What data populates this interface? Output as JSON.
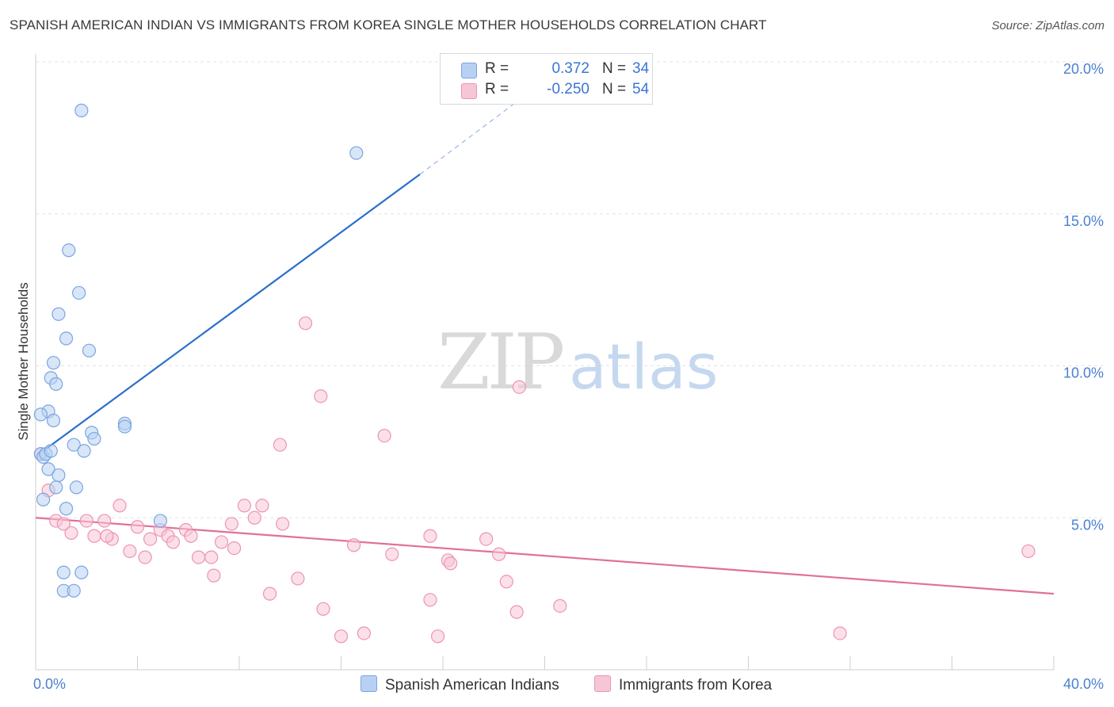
{
  "title": "SPANISH AMERICAN INDIAN VS IMMIGRANTS FROM KOREA SINGLE MOTHER HOUSEHOLDS CORRELATION CHART",
  "source": "Source: ZipAtlas.com",
  "watermark": {
    "zip": "ZIP",
    "atlas": "atlas"
  },
  "colors": {
    "blue_fill": "#b8d1f3",
    "blue_stroke": "#7aa5e0",
    "blue_line": "#2a6fcc",
    "pink_fill": "#f7c6d6",
    "pink_stroke": "#ec94b2",
    "pink_line": "#e0709a",
    "tick_text": "#4a7fd1",
    "grid": "#e3e3e3"
  },
  "legend": {
    "rows": [
      {
        "series": "blue",
        "r_label": "R =",
        "r_value": "0.372",
        "n_label": "N =",
        "n_value": "34"
      },
      {
        "series": "pink",
        "r_label": "R =",
        "r_value": "-0.250",
        "n_label": "N =",
        "n_value": "54"
      }
    ]
  },
  "chart_data": {
    "type": "scatter",
    "title": "SPANISH AMERICAN INDIAN VS IMMIGRANTS FROM KOREA SINGLE MOTHER HOUSEHOLDS CORRELATION CHART",
    "xlabel": "",
    "ylabel": "Single Mother Households",
    "xlim": [
      0,
      40
    ],
    "ylim": [
      0,
      20
    ],
    "x_tick_labels": [
      "0.0%",
      "40.0%"
    ],
    "y_ticks": [
      5,
      10,
      15,
      20
    ],
    "y_tick_labels": [
      "5.0%",
      "10.0%",
      "15.0%",
      "20.0%"
    ],
    "grid": true,
    "series": [
      {
        "name": "Spanish American Indians",
        "color": "blue",
        "points": [
          [
            1.8,
            18.4
          ],
          [
            12.6,
            17.0
          ],
          [
            1.3,
            13.8
          ],
          [
            1.7,
            12.4
          ],
          [
            0.9,
            11.7
          ],
          [
            1.2,
            10.9
          ],
          [
            2.1,
            10.5
          ],
          [
            0.7,
            10.1
          ],
          [
            0.6,
            9.6
          ],
          [
            0.8,
            9.4
          ],
          [
            0.5,
            8.5
          ],
          [
            0.2,
            8.4
          ],
          [
            0.7,
            8.2
          ],
          [
            3.5,
            8.1
          ],
          [
            3.5,
            8.0
          ],
          [
            2.2,
            7.8
          ],
          [
            2.3,
            7.6
          ],
          [
            1.5,
            7.4
          ],
          [
            1.9,
            7.2
          ],
          [
            0.2,
            7.1
          ],
          [
            0.3,
            7.0
          ],
          [
            0.5,
            6.6
          ],
          [
            0.9,
            6.4
          ],
          [
            1.6,
            6.0
          ],
          [
            0.8,
            6.0
          ],
          [
            0.3,
            5.6
          ],
          [
            1.2,
            5.3
          ],
          [
            4.9,
            4.9
          ],
          [
            1.1,
            3.2
          ],
          [
            1.8,
            3.2
          ],
          [
            1.1,
            2.6
          ],
          [
            1.5,
            2.6
          ],
          [
            0.4,
            7.1
          ],
          [
            0.6,
            7.2
          ]
        ],
        "trend": {
          "x0": 0.3,
          "y0": 7.2,
          "x1": 15.1,
          "y1": 16.3,
          "dash_x1": 20.2,
          "dash_y1": 19.5
        }
      },
      {
        "name": "Immigrants from Korea",
        "color": "pink",
        "points": [
          [
            10.6,
            11.4
          ],
          [
            11.2,
            9.0
          ],
          [
            19.0,
            9.3
          ],
          [
            13.7,
            7.7
          ],
          [
            9.6,
            7.4
          ],
          [
            0.2,
            7.1
          ],
          [
            0.5,
            5.9
          ],
          [
            3.3,
            5.4
          ],
          [
            8.2,
            5.4
          ],
          [
            8.9,
            5.4
          ],
          [
            8.6,
            5.0
          ],
          [
            0.8,
            4.9
          ],
          [
            1.1,
            4.8
          ],
          [
            2.7,
            4.9
          ],
          [
            2.0,
            4.9
          ],
          [
            7.7,
            4.8
          ],
          [
            9.7,
            4.8
          ],
          [
            4.0,
            4.7
          ],
          [
            4.9,
            4.6
          ],
          [
            5.9,
            4.6
          ],
          [
            1.4,
            4.5
          ],
          [
            2.3,
            4.4
          ],
          [
            3.0,
            4.3
          ],
          [
            2.8,
            4.4
          ],
          [
            4.5,
            4.3
          ],
          [
            5.2,
            4.4
          ],
          [
            6.1,
            4.4
          ],
          [
            15.5,
            4.4
          ],
          [
            5.4,
            4.2
          ],
          [
            7.3,
            4.2
          ],
          [
            12.5,
            4.1
          ],
          [
            17.7,
            4.3
          ],
          [
            7.8,
            4.0
          ],
          [
            3.7,
            3.9
          ],
          [
            4.3,
            3.7
          ],
          [
            14.0,
            3.8
          ],
          [
            18.2,
            3.8
          ],
          [
            6.4,
            3.7
          ],
          [
            6.9,
            3.7
          ],
          [
            16.2,
            3.6
          ],
          [
            16.3,
            3.5
          ],
          [
            39.0,
            3.9
          ],
          [
            7.0,
            3.1
          ],
          [
            10.3,
            3.0
          ],
          [
            18.5,
            2.9
          ],
          [
            9.2,
            2.5
          ],
          [
            15.5,
            2.3
          ],
          [
            11.3,
            2.0
          ],
          [
            20.6,
            2.1
          ],
          [
            18.9,
            1.9
          ],
          [
            12.9,
            1.2
          ],
          [
            12.0,
            1.1
          ],
          [
            15.8,
            1.1
          ],
          [
            31.6,
            1.2
          ]
        ],
        "trend": {
          "x0": 0.0,
          "y0": 5.0,
          "x1": 40.0,
          "y1": 2.5
        }
      }
    ]
  }
}
